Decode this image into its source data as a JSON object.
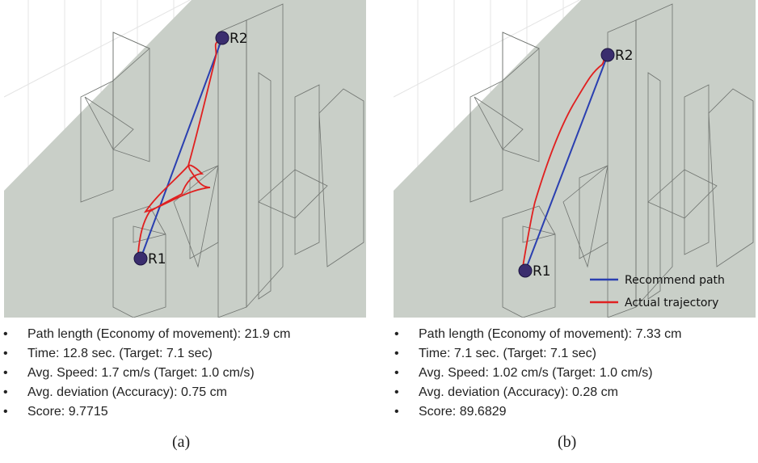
{
  "panels": [
    {
      "caption": "(a)",
      "start_label": "R1",
      "end_label": "R2",
      "bullets": [
        "Path length (Economy of movement): 21.9 cm",
        "Time:  12.8 sec. (Target: 7.1 sec)",
        "Avg. Speed:  1.7 cm/s (Target:  1.0 cm/s)",
        "Avg. deviation (Accuracy):  0.75 cm",
        "Score: 9.7715"
      ]
    },
    {
      "caption": "(b)",
      "start_label": "R1",
      "end_label": "R2",
      "legend": [
        "Recommend path",
        "Actual trajectory"
      ],
      "bullets": [
        "Path length (Economy of movement): 7.33 cm",
        "Time:  7.1 sec. (Target: 7.1 sec)",
        "Avg. Speed:  1.02 cm/s (Target:  1.0 cm/s)",
        "Avg. deviation (Accuracy):  0.28 cm",
        "Score: 89.6829"
      ]
    }
  ]
}
